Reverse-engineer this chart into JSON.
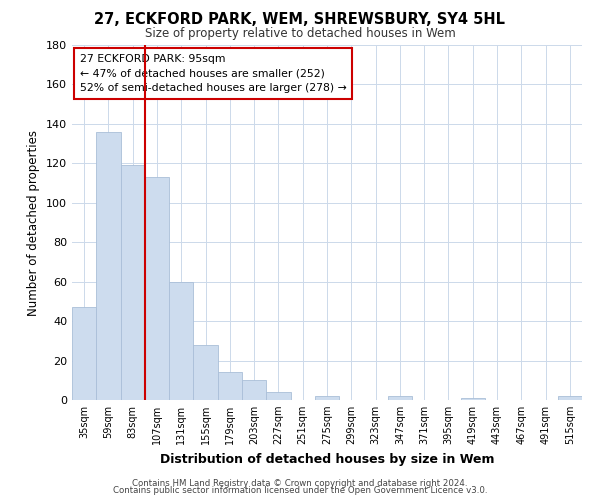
{
  "title": "27, ECKFORD PARK, WEM, SHREWSBURY, SY4 5HL",
  "subtitle": "Size of property relative to detached houses in Wem",
  "xlabel": "Distribution of detached houses by size in Wem",
  "ylabel": "Number of detached properties",
  "bar_labels": [
    "35sqm",
    "59sqm",
    "83sqm",
    "107sqm",
    "131sqm",
    "155sqm",
    "179sqm",
    "203sqm",
    "227sqm",
    "251sqm",
    "275sqm",
    "299sqm",
    "323sqm",
    "347sqm",
    "371sqm",
    "395sqm",
    "419sqm",
    "443sqm",
    "467sqm",
    "491sqm",
    "515sqm"
  ],
  "bar_values": [
    47,
    136,
    119,
    113,
    60,
    28,
    14,
    10,
    4,
    0,
    2,
    0,
    0,
    2,
    0,
    0,
    1,
    0,
    0,
    0,
    2
  ],
  "bar_color": "#cddcee",
  "bar_edge_color": "#aabfd8",
  "ylim": [
    0,
    180
  ],
  "yticks": [
    0,
    20,
    40,
    60,
    80,
    100,
    120,
    140,
    160,
    180
  ],
  "vline_x": 2.5,
  "vline_color": "#cc0000",
  "annotation_title": "27 ECKFORD PARK: 95sqm",
  "annotation_line1": "← 47% of detached houses are smaller (252)",
  "annotation_line2": "52% of semi-detached houses are larger (278) →",
  "annotation_box_color": "#ffffff",
  "annotation_border_color": "#cc0000",
  "footer1": "Contains HM Land Registry data © Crown copyright and database right 2024.",
  "footer2": "Contains public sector information licensed under the Open Government Licence v3.0.",
  "background_color": "#ffffff",
  "grid_color": "#ccd9ea"
}
